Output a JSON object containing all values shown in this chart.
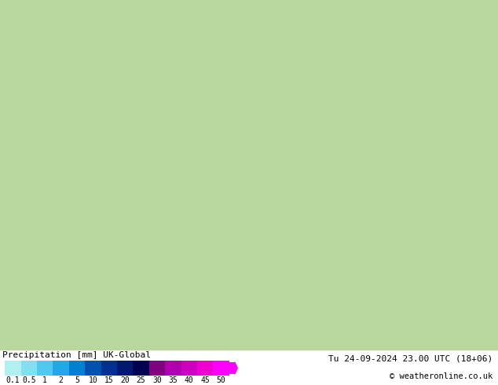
{
  "title_left": "Precipitation [mm] UK-Global",
  "title_right_line1": "Tu 24-09-2024 23.00 UTC (18+06)",
  "title_right_line2": "© weatheronline.co.uk",
  "colorbar_levels": [
    0.1,
    0.5,
    1,
    2,
    5,
    10,
    15,
    20,
    25,
    30,
    35,
    40,
    45,
    50
  ],
  "colorbar_colors": [
    "#b0f0f0",
    "#80e0f0",
    "#50c8f0",
    "#20a8e8",
    "#0080d0",
    "#0050b0",
    "#003090",
    "#001870",
    "#000050",
    "#800080",
    "#b000b0",
    "#d000c0",
    "#f000d0",
    "#ff00ff"
  ],
  "background_color": "#aad4a0",
  "land_color": "#aad4a0",
  "sea_color": "#c8e8f0",
  "border_color": "#888888",
  "fig_width": 6.34,
  "fig_height": 4.9,
  "dpi": 100,
  "bottom_bar_height": 0.08,
  "bottom_bg_color": "#ffffff"
}
